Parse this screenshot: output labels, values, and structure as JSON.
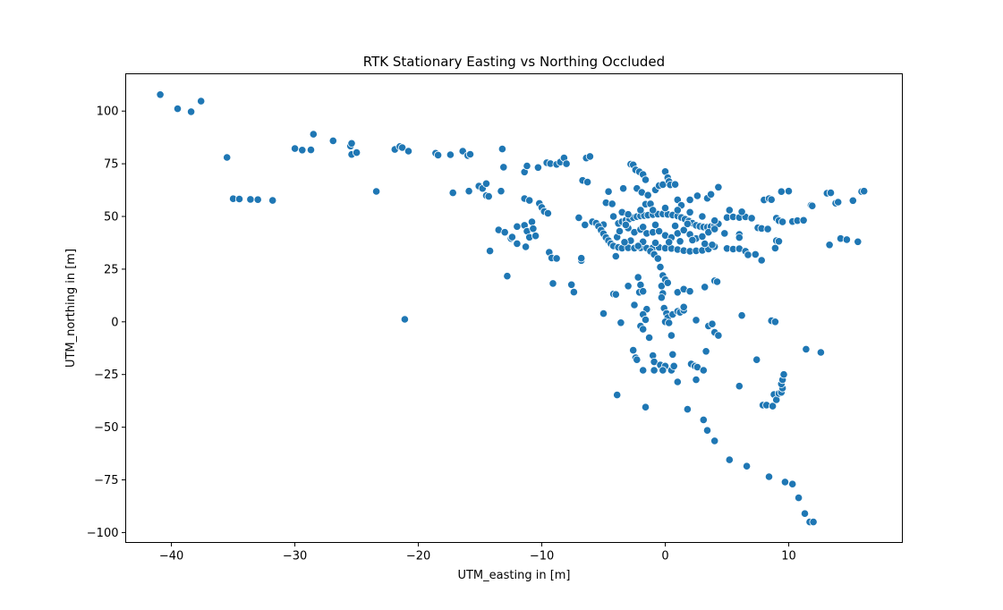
{
  "chart_data": {
    "type": "scatter",
    "title": "RTK Stationary Easting vs Northing Occluded",
    "xlabel": "UTM_easting in [m]",
    "ylabel": "UTM_northing in [m]",
    "xlim": [
      -43.7,
      19.2
    ],
    "ylim": [
      -104.7,
      117.7
    ],
    "xticks": [
      -40,
      -30,
      -20,
      -10,
      0,
      10
    ],
    "yticks": [
      -100,
      -75,
      -50,
      -25,
      0,
      25,
      50,
      75,
      100
    ],
    "grid": false,
    "marker_color": "#1f77b4",
    "points": [
      [
        -40.9,
        107.8
      ],
      [
        -39.5,
        101.1
      ],
      [
        -38.4,
        99.7
      ],
      [
        -37.6,
        104.7
      ],
      [
        -35.5,
        78.0
      ],
      [
        -35.0,
        58.4
      ],
      [
        -34.5,
        58.3
      ],
      [
        -33.6,
        58.1
      ],
      [
        -33.0,
        58.0
      ],
      [
        -31.8,
        57.6
      ],
      [
        -30.0,
        82.2
      ],
      [
        -29.4,
        81.5
      ],
      [
        -28.7,
        81.6
      ],
      [
        -28.5,
        89.0
      ],
      [
        -26.9,
        85.9
      ],
      [
        -25.5,
        83.4
      ],
      [
        -25.4,
        84.7
      ],
      [
        -25.4,
        79.4
      ],
      [
        -25.0,
        80.3
      ],
      [
        -23.4,
        61.9
      ],
      [
        -21.9,
        81.8
      ],
      [
        -21.5,
        83.2
      ],
      [
        -21.3,
        82.7
      ],
      [
        -20.8,
        81.0
      ],
      [
        -21.1,
        1.2
      ],
      [
        -18.6,
        80.0
      ],
      [
        -18.4,
        79.1
      ],
      [
        -17.4,
        79.3
      ],
      [
        -17.2,
        61.2
      ],
      [
        -16.4,
        81.0
      ],
      [
        -16.0,
        78.9
      ],
      [
        -15.8,
        79.5
      ],
      [
        -15.9,
        62.0
      ],
      [
        -15.1,
        64.4
      ],
      [
        -14.8,
        63.3
      ],
      [
        -14.5,
        65.6
      ],
      [
        -14.5,
        59.9
      ],
      [
        -14.3,
        59.5
      ],
      [
        -14.2,
        33.6
      ],
      [
        -13.2,
        82.0
      ],
      [
        -13.1,
        73.4
      ],
      [
        -13.3,
        62.0
      ],
      [
        -13.5,
        43.6
      ],
      [
        -13.0,
        42.5
      ],
      [
        -12.8,
        21.7
      ],
      [
        -12.5,
        39.5
      ],
      [
        -12.4,
        40.2
      ],
      [
        -12.0,
        45.2
      ],
      [
        -12.0,
        37.1
      ],
      [
        -11.4,
        71.1
      ],
      [
        -11.2,
        74.0
      ],
      [
        -11.4,
        58.5
      ],
      [
        -11.0,
        57.6
      ],
      [
        -11.4,
        45.8
      ],
      [
        -11.3,
        35.6
      ],
      [
        -11.2,
        43.0
      ],
      [
        -11.0,
        40.1
      ],
      [
        -10.8,
        47.4
      ],
      [
        -10.7,
        44.2
      ],
      [
        -10.5,
        40.8
      ],
      [
        -10.3,
        73.2
      ],
      [
        -10.2,
        56.2
      ],
      [
        -10.0,
        54.3
      ],
      [
        -9.8,
        52.4
      ],
      [
        -9.5,
        51.5
      ],
      [
        -9.4,
        33.0
      ],
      [
        -9.2,
        30.3
      ],
      [
        -9.1,
        18.2
      ],
      [
        -8.8,
        30.1
      ],
      [
        -9.6,
        75.5
      ],
      [
        -9.3,
        75.1
      ],
      [
        -8.8,
        74.7
      ],
      [
        -8.5,
        75.8
      ],
      [
        -8.2,
        77.8
      ],
      [
        -8.0,
        75.0
      ],
      [
        -7.6,
        17.6
      ],
      [
        -7.4,
        14.1
      ],
      [
        -7.0,
        49.4
      ],
      [
        -6.8,
        29.1
      ],
      [
        -6.8,
        30.2
      ],
      [
        -6.7,
        67.1
      ],
      [
        -6.3,
        66.3
      ],
      [
        -6.4,
        77.7
      ],
      [
        -6.1,
        78.5
      ],
      [
        -5.9,
        47.5
      ],
      [
        -5.6,
        46.8
      ],
      [
        -5.0,
        46.1
      ],
      [
        -5.0,
        3.9
      ],
      [
        -4.8,
        56.5
      ],
      [
        -4.6,
        61.8
      ],
      [
        -4.3,
        56.0
      ],
      [
        -4.2,
        13.2
      ],
      [
        -4.0,
        13.0
      ],
      [
        -3.9,
        -34.7
      ],
      [
        -3.6,
        -0.4
      ],
      [
        -3.4,
        63.3
      ],
      [
        -2.8,
        74.8
      ],
      [
        -2.6,
        74.5
      ],
      [
        -2.4,
        72.1
      ],
      [
        -2.3,
        63.3
      ],
      [
        -2.1,
        71.2
      ],
      [
        -1.8,
        69.9
      ],
      [
        -1.6,
        67.4
      ],
      [
        -1.9,
        61.4
      ],
      [
        -1.4,
        60.1
      ],
      [
        -1.6,
        55.8
      ],
      [
        -1.2,
        56.0
      ],
      [
        -0.8,
        62.6
      ],
      [
        -0.5,
        64.6
      ],
      [
        -0.2,
        65.1
      ],
      [
        0.0,
        71.3
      ],
      [
        0.2,
        68.4
      ],
      [
        0.3,
        66.6
      ],
      [
        0.4,
        65.0
      ],
      [
        0.8,
        65.2
      ],
      [
        1.0,
        57.9
      ],
      [
        1.3,
        55.3
      ],
      [
        2.0,
        57.9
      ],
      [
        2.6,
        59.8
      ],
      [
        3.4,
        58.6
      ],
      [
        3.7,
        60.5
      ],
      [
        4.3,
        63.9
      ],
      [
        -6.5,
        46.0
      ],
      [
        -5.4,
        45.3
      ],
      [
        -5.2,
        43.5
      ],
      [
        -5.0,
        41.8
      ],
      [
        -4.8,
        40.0
      ],
      [
        -4.6,
        38.5
      ],
      [
        -4.4,
        37.1
      ],
      [
        -4.2,
        36.0
      ],
      [
        -3.8,
        35.3
      ],
      [
        -3.5,
        35.0
      ],
      [
        -3.0,
        35.1
      ],
      [
        -2.5,
        35.0
      ],
      [
        -2.0,
        35.1
      ],
      [
        -1.5,
        35.0
      ],
      [
        -1.0,
        35.2
      ],
      [
        -0.5,
        35.3
      ],
      [
        0.0,
        35.0
      ],
      [
        0.5,
        34.8
      ],
      [
        1.0,
        34.3
      ],
      [
        1.5,
        33.8
      ],
      [
        2.0,
        33.5
      ],
      [
        2.5,
        33.7
      ],
      [
        3.0,
        33.9
      ],
      [
        3.5,
        34.5
      ],
      [
        4.0,
        35.7
      ],
      [
        5.0,
        34.8
      ],
      [
        5.5,
        34.5
      ],
      [
        6.0,
        34.7
      ],
      [
        6.5,
        33.5
      ],
      [
        6.7,
        31.8
      ],
      [
        7.3,
        32.0
      ],
      [
        7.8,
        29.2
      ],
      [
        -4.0,
        31.1
      ],
      [
        -3.8,
        46.7
      ],
      [
        -3.5,
        47.5
      ],
      [
        -3.2,
        48.2
      ],
      [
        -2.9,
        48.8
      ],
      [
        -2.6,
        49.4
      ],
      [
        -2.3,
        49.9
      ],
      [
        -2.0,
        50.2
      ],
      [
        -1.7,
        50.4
      ],
      [
        -1.4,
        50.6
      ],
      [
        -1.0,
        50.9
      ],
      [
        -0.6,
        51.1
      ],
      [
        -0.2,
        51.2
      ],
      [
        0.2,
        51.0
      ],
      [
        0.6,
        50.7
      ],
      [
        1.0,
        50.2
      ],
      [
        1.3,
        49.5
      ],
      [
        1.6,
        48.7
      ],
      [
        1.9,
        47.8
      ],
      [
        2.2,
        46.8
      ],
      [
        2.5,
        45.8
      ],
      [
        2.8,
        45.3
      ],
      [
        3.1,
        45.0
      ],
      [
        3.4,
        44.9
      ],
      [
        3.7,
        45.2
      ],
      [
        4.0,
        45.8
      ],
      [
        4.3,
        46.5
      ],
      [
        -3.9,
        40.2
      ],
      [
        -3.7,
        43.0
      ],
      [
        -3.0,
        44.5
      ],
      [
        -2.5,
        42.5
      ],
      [
        -2.0,
        43.8
      ],
      [
        -1.5,
        42.0
      ],
      [
        -1.0,
        42.5
      ],
      [
        -0.5,
        43.0
      ],
      [
        0.0,
        41.0
      ],
      [
        0.5,
        40.0
      ],
      [
        1.0,
        42.0
      ],
      [
        1.5,
        43.5
      ],
      [
        2.0,
        41.5
      ],
      [
        2.5,
        39.5
      ],
      [
        3.0,
        40.5
      ],
      [
        3.5,
        42.5
      ],
      [
        4.0,
        44.0
      ],
      [
        -4.2,
        50.0
      ],
      [
        -3.5,
        52.0
      ],
      [
        -3.0,
        51.0
      ],
      [
        -2.0,
        53.0
      ],
      [
        -1.0,
        53.0
      ],
      [
        0.0,
        54.0
      ],
      [
        1.0,
        53.0
      ],
      [
        2.0,
        52.0
      ],
      [
        3.0,
        50.0
      ],
      [
        4.0,
        48.0
      ],
      [
        5.0,
        49.5
      ],
      [
        5.5,
        49.8
      ],
      [
        6.0,
        49.5
      ],
      [
        6.5,
        49.8
      ],
      [
        7.0,
        49.2
      ],
      [
        7.5,
        44.6
      ],
      [
        7.8,
        44.3
      ],
      [
        8.3,
        44.0
      ],
      [
        5.2,
        53.0
      ],
      [
        6.2,
        52.2
      ],
      [
        4.8,
        42.0
      ],
      [
        6.0,
        41.5
      ],
      [
        6.0,
        40.0
      ],
      [
        -3.2,
        46.0
      ],
      [
        -1.8,
        45.0
      ],
      [
        -0.8,
        46.0
      ],
      [
        0.8,
        45.5
      ],
      [
        1.8,
        46.5
      ],
      [
        -2.8,
        38.5
      ],
      [
        -1.8,
        38.0
      ],
      [
        -0.8,
        37.5
      ],
      [
        0.3,
        37.8
      ],
      [
        1.2,
        38.2
      ],
      [
        2.2,
        38.8
      ],
      [
        3.2,
        37.0
      ],
      [
        3.8,
        36.5
      ],
      [
        -3.3,
        37.8
      ],
      [
        -2.2,
        36.0
      ],
      [
        -1.2,
        33.5
      ],
      [
        -0.9,
        32.0
      ],
      [
        -0.6,
        30.0
      ],
      [
        -0.4,
        26.0
      ],
      [
        -0.2,
        22.0
      ],
      [
        0.0,
        20.0
      ],
      [
        -0.3,
        17.0
      ],
      [
        0.2,
        18.5
      ],
      [
        -2.2,
        21.1
      ],
      [
        -2.0,
        17.5
      ],
      [
        -2.1,
        14.0
      ],
      [
        -1.8,
        14.5
      ],
      [
        -3.0,
        17.0
      ],
      [
        -0.2,
        13.5
      ],
      [
        -0.3,
        11.5
      ],
      [
        -2.5,
        8.0
      ],
      [
        -1.5,
        6.0
      ],
      [
        -1.8,
        3.5
      ],
      [
        -1.6,
        1.0
      ],
      [
        -2.0,
        -2.0
      ],
      [
        -1.8,
        -3.5
      ],
      [
        -1.3,
        -7.5
      ],
      [
        -0.1,
        6.5
      ],
      [
        0.1,
        4.0
      ],
      [
        0.2,
        2.0
      ],
      [
        0.0,
        0.0
      ],
      [
        0.3,
        -0.5
      ],
      [
        0.5,
        -6.5
      ],
      [
        0.6,
        3.5
      ],
      [
        1.0,
        5.0
      ],
      [
        1.2,
        4.5
      ],
      [
        1.5,
        5.5
      ],
      [
        1.5,
        7.0
      ],
      [
        1.0,
        14.0
      ],
      [
        1.5,
        15.5
      ],
      [
        2.0,
        14.5
      ],
      [
        2.5,
        0.8
      ],
      [
        3.2,
        16.5
      ],
      [
        3.5,
        -2.0
      ],
      [
        3.8,
        -1.0
      ],
      [
        4.0,
        19.5
      ],
      [
        4.2,
        19.0
      ],
      [
        4.0,
        -5.0
      ],
      [
        4.3,
        -6.5
      ],
      [
        6.2,
        3.0
      ],
      [
        8.6,
        0.5
      ],
      [
        8.9,
        0.0
      ],
      [
        -2.6,
        -13.5
      ],
      [
        -2.4,
        -17.0
      ],
      [
        -2.3,
        -18.0
      ],
      [
        -1.8,
        -23.0
      ],
      [
        -1.0,
        -16.0
      ],
      [
        -0.9,
        -19.0
      ],
      [
        -0.9,
        -23.0
      ],
      [
        -0.4,
        -20.5
      ],
      [
        0.0,
        -21.0
      ],
      [
        -0.2,
        -23.0
      ],
      [
        0.6,
        -15.5
      ],
      [
        0.5,
        -23.0
      ],
      [
        0.7,
        -21.0
      ],
      [
        1.0,
        -28.5
      ],
      [
        1.8,
        -41.5
      ],
      [
        2.1,
        -20.0
      ],
      [
        2.4,
        -21.0
      ],
      [
        2.6,
        -21.5
      ],
      [
        2.5,
        -27.5
      ],
      [
        3.1,
        -23.0
      ],
      [
        3.3,
        -14.0
      ],
      [
        -1.6,
        -40.5
      ],
      [
        3.1,
        -46.5
      ],
      [
        3.4,
        -51.5
      ],
      [
        4.0,
        -56.5
      ],
      [
        5.2,
        -65.5
      ],
      [
        6.6,
        -68.5
      ],
      [
        7.4,
        -18.0
      ],
      [
        6.0,
        -30.5
      ],
      [
        7.9,
        -39.5
      ],
      [
        8.2,
        -39.5
      ],
      [
        8.7,
        -40.0
      ],
      [
        8.8,
        -34.5
      ],
      [
        9.0,
        -37.0
      ],
      [
        9.2,
        -34.0
      ],
      [
        9.4,
        -33.5
      ],
      [
        9.5,
        -31.5
      ],
      [
        9.4,
        -29.5
      ],
      [
        9.5,
        -27.5
      ],
      [
        9.6,
        -25.0
      ],
      [
        8.4,
        -73.5
      ],
      [
        9.7,
        -76.0
      ],
      [
        10.3,
        -77.0
      ],
      [
        10.8,
        -83.5
      ],
      [
        11.3,
        -91.0
      ],
      [
        11.7,
        -95.0
      ],
      [
        12.0,
        -95.0
      ],
      [
        8.0,
        57.8
      ],
      [
        8.4,
        58.5
      ],
      [
        8.6,
        58.0
      ],
      [
        9.4,
        61.8
      ],
      [
        10.0,
        62.0
      ],
      [
        9.0,
        49.2
      ],
      [
        9.2,
        48.0
      ],
      [
        9.5,
        47.4
      ],
      [
        10.3,
        47.6
      ],
      [
        10.7,
        48.0
      ],
      [
        11.2,
        48.2
      ],
      [
        11.8,
        55.3
      ],
      [
        11.9,
        55.0
      ],
      [
        13.1,
        61.0
      ],
      [
        13.4,
        61.2
      ],
      [
        13.8,
        56.3
      ],
      [
        14.0,
        56.8
      ],
      [
        15.2,
        57.5
      ],
      [
        15.9,
        61.8
      ],
      [
        16.1,
        62.0
      ],
      [
        9.0,
        38.5
      ],
      [
        9.2,
        38.2
      ],
      [
        8.9,
        35.0
      ],
      [
        11.4,
        -13.0
      ],
      [
        12.6,
        -14.5
      ],
      [
        13.3,
        36.5
      ],
      [
        14.2,
        39.5
      ],
      [
        14.7,
        39.0
      ],
      [
        15.6,
        38.0
      ]
    ]
  }
}
